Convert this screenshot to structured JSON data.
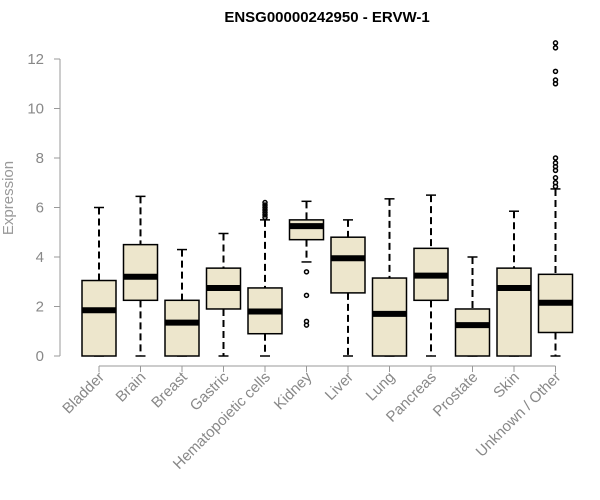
{
  "chart_data": {
    "type": "box",
    "title": "ENSG00000242950 - ERVW-1",
    "xlabel": "",
    "ylabel": "Expression",
    "ylim": [
      0,
      12.5
    ],
    "yticks": [
      0,
      2,
      4,
      6,
      8,
      10,
      12
    ],
    "box_fill": "#ede6cc",
    "median_color": "#000000",
    "categories": [
      "Bladder",
      "Brain",
      "Breast",
      "Gastric",
      "Hematopoietic cells",
      "Kidney",
      "Liver",
      "Lung",
      "Pancreas",
      "Prostate",
      "Skin",
      "Unknown / Other"
    ],
    "boxes": [
      {
        "min": 0,
        "q1": 0,
        "median": 1.85,
        "q3": 3.05,
        "max": 6.0,
        "outliers": []
      },
      {
        "min": 0,
        "q1": 2.25,
        "median": 3.2,
        "q3": 4.5,
        "max": 6.45,
        "outliers": []
      },
      {
        "min": 0,
        "q1": 0,
        "median": 1.35,
        "q3": 2.25,
        "max": 4.3,
        "outliers": []
      },
      {
        "min": 0,
        "q1": 1.9,
        "median": 2.75,
        "q3": 3.55,
        "max": 4.95,
        "outliers": []
      },
      {
        "min": 0,
        "q1": 0.9,
        "median": 1.8,
        "q3": 2.75,
        "max": 5.5,
        "outliers": [
          5.6,
          5.7,
          5.8,
          5.9,
          6.0,
          6.1,
          6.2
        ]
      },
      {
        "min": 3.8,
        "q1": 4.7,
        "median": 5.25,
        "q3": 5.5,
        "max": 6.25,
        "outliers": [
          3.4,
          2.45,
          1.4,
          1.25
        ]
      },
      {
        "min": 0,
        "q1": 2.55,
        "median": 3.95,
        "q3": 4.8,
        "max": 5.5,
        "outliers": []
      },
      {
        "min": 0,
        "q1": 0,
        "median": 1.7,
        "q3": 3.15,
        "max": 6.35,
        "outliers": []
      },
      {
        "min": 0,
        "q1": 2.25,
        "median": 3.25,
        "q3": 4.35,
        "max": 6.5,
        "outliers": []
      },
      {
        "min": 0,
        "q1": 0,
        "median": 1.25,
        "q3": 1.9,
        "max": 4.0,
        "outliers": []
      },
      {
        "min": 0,
        "q1": 0,
        "median": 2.75,
        "q3": 3.55,
        "max": 5.85,
        "outliers": []
      },
      {
        "min": 0,
        "q1": 0.95,
        "median": 2.15,
        "q3": 3.3,
        "max": 6.75,
        "outliers": [
          6.85,
          7.0,
          7.2,
          7.5,
          7.65,
          7.8,
          8.0,
          11.0,
          11.15,
          11.5,
          12.45,
          12.65
        ]
      }
    ]
  }
}
